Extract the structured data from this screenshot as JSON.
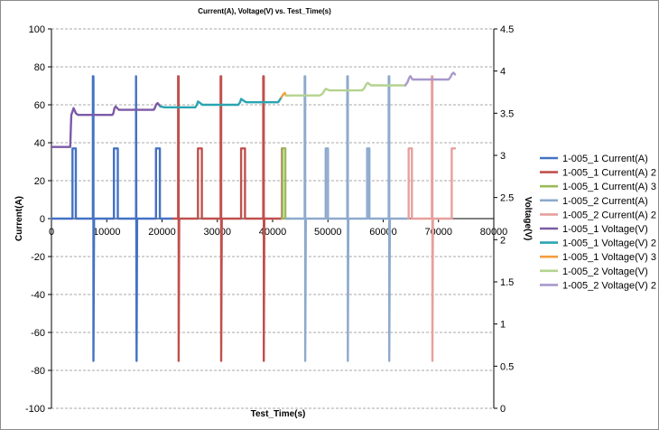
{
  "chart_data": {
    "type": "line",
    "title": "Current(A), Voltage(V) vs. Test_Time(s)",
    "xlabel": "Test_Time(s)",
    "ylabel": "Current(A)",
    "y2label": "Voltage(V)",
    "xlim": [
      0,
      80000
    ],
    "ylim": [
      -100,
      100
    ],
    "y2lim": [
      0,
      4.5
    ],
    "xticks": [
      "0",
      "10000",
      "20000",
      "30000",
      "40000",
      "50000",
      "60000",
      "70000",
      "80000"
    ],
    "yticks": [
      "100",
      "80",
      "60",
      "40",
      "20",
      "0",
      "-20",
      "-40",
      "-60",
      "-80",
      "-100"
    ],
    "y2ticks": [
      "4.5",
      "4",
      "3.5",
      "3",
      "2.5",
      "2",
      "1.5",
      "1",
      "0.5",
      "0"
    ],
    "grid": "horizontal",
    "legend_position": "right",
    "series": [
      {
        "name": "1-005_1 Current(A)",
        "axis": "left",
        "color": "#4472c4",
        "x": [
          0,
          3700,
          3800,
          3800,
          4400,
          4400,
          4500,
          7500,
          7500,
          7600,
          7600,
          7700,
          11200,
          11300,
          11300,
          12000,
          12000,
          12100,
          15300,
          15300,
          15400,
          15400,
          15500,
          18800,
          18900,
          18900,
          19600,
          19600,
          19700,
          22000
        ],
        "y": [
          0,
          0,
          0,
          37,
          37,
          0,
          0,
          0,
          75,
          75,
          -75,
          0,
          0,
          0,
          37,
          37,
          0,
          0,
          0,
          75,
          -75,
          -75,
          0,
          0,
          0,
          37,
          37,
          0,
          0,
          0
        ]
      },
      {
        "name": "1-005_1 Current(A)  2",
        "axis": "left",
        "color": "#c0504d",
        "x": [
          22000,
          22900,
          22900,
          23000,
          23000,
          23100,
          26400,
          26500,
          26500,
          27200,
          27200,
          27300,
          30600,
          30600,
          30700,
          30700,
          30800,
          34200,
          34300,
          34300,
          35000,
          35000,
          35100,
          38300,
          38300,
          38400,
          38400,
          38500,
          41600,
          41700,
          41700,
          42200
        ],
        "y": [
          0,
          0,
          75,
          75,
          -75,
          0,
          0,
          0,
          37,
          37,
          0,
          0,
          0,
          75,
          75,
          -75,
          0,
          0,
          0,
          37,
          37,
          0,
          0,
          0,
          75,
          75,
          -75,
          0,
          0,
          0,
          37,
          37
        ]
      },
      {
        "name": "1-005_1 Current(A)  3",
        "axis": "left",
        "color": "#9bbb59",
        "x": [
          41700,
          41800,
          41800,
          42300,
          42300,
          42400,
          43000
        ],
        "y": [
          0,
          0,
          37,
          37,
          0,
          0,
          0
        ]
      },
      {
        "name": "1-005_2 Current(A)",
        "axis": "left",
        "color": "#8eaacd",
        "x": [
          42500,
          45800,
          45800,
          45900,
          45900,
          46000,
          49500,
          49600,
          49600,
          50000,
          50000,
          50100,
          53500,
          53500,
          53600,
          53600,
          53700,
          57000,
          57100,
          57100,
          57500,
          57500,
          57600,
          61000,
          61000,
          61100,
          61100,
          61200,
          64500
        ],
        "y": [
          0,
          0,
          75,
          75,
          -75,
          0,
          0,
          0,
          37,
          37,
          0,
          0,
          0,
          75,
          75,
          -75,
          0,
          0,
          0,
          37,
          37,
          0,
          0,
          0,
          75,
          75,
          -75,
          0,
          0
        ]
      },
      {
        "name": "1-005_2 Current(A)  2",
        "axis": "left",
        "color": "#e6a09d",
        "x": [
          64500,
          64600,
          64600,
          65200,
          65200,
          65300,
          68800,
          68800,
          68900,
          68900,
          69000,
          72300,
          72400,
          72400,
          73000
        ],
        "y": [
          0,
          0,
          37,
          37,
          0,
          0,
          0,
          75,
          75,
          -75,
          0,
          0,
          0,
          37,
          37
        ]
      },
      {
        "name": "1-005_1 Voltage(V)",
        "axis": "right",
        "color": "#7b5aa6",
        "x": [
          0,
          3400,
          3500,
          3600,
          3800,
          4000,
          4400,
          4800,
          6000,
          11000,
          11200,
          11400,
          11600,
          12200,
          18500,
          18700,
          18900,
          19200,
          19700
        ],
        "y": [
          3.1,
          3.1,
          3.3,
          3.48,
          3.52,
          3.56,
          3.5,
          3.48,
          3.48,
          3.48,
          3.5,
          3.56,
          3.58,
          3.54,
          3.54,
          3.56,
          3.6,
          3.62,
          3.58
        ]
      },
      {
        "name": "1-005_1 Voltage(V)  2",
        "axis": "right",
        "color": "#2aa4b0",
        "x": [
          19700,
          20500,
          21500,
          22500,
          26000,
          26300,
          26500,
          26700,
          27300,
          33800,
          34100,
          34300,
          34500,
          35200,
          41000,
          41300,
          41600
        ],
        "y": [
          3.58,
          3.57,
          3.57,
          3.57,
          3.57,
          3.6,
          3.64,
          3.63,
          3.6,
          3.6,
          3.63,
          3.67,
          3.66,
          3.63,
          3.63,
          3.66,
          3.69
        ]
      },
      {
        "name": "1-005_1 Voltage(V)  3",
        "axis": "right",
        "color": "#f39c3d",
        "x": [
          41600,
          41900,
          42200,
          42400,
          43000
        ],
        "y": [
          3.69,
          3.72,
          3.74,
          3.71,
          3.71
        ]
      },
      {
        "name": "1-005_2 Voltage(V)",
        "axis": "right",
        "color": "#b4d38f",
        "x": [
          42400,
          43500,
          48500,
          49000,
          49400,
          49600,
          50300,
          56200,
          56600,
          56900,
          57200,
          57800,
          64000
        ],
        "y": [
          3.71,
          3.71,
          3.71,
          3.73,
          3.77,
          3.79,
          3.77,
          3.77,
          3.8,
          3.84,
          3.86,
          3.83,
          3.83
        ]
      },
      {
        "name": "1-005_2 Voltage(V)  2",
        "axis": "right",
        "color": "#a898cb",
        "x": [
          64000,
          64400,
          64700,
          64900,
          65300,
          71800,
          72100,
          72400,
          72700,
          73000
        ],
        "y": [
          3.83,
          3.87,
          3.92,
          3.94,
          3.9,
          3.9,
          3.92,
          3.96,
          3.98,
          3.96
        ]
      }
    ]
  }
}
